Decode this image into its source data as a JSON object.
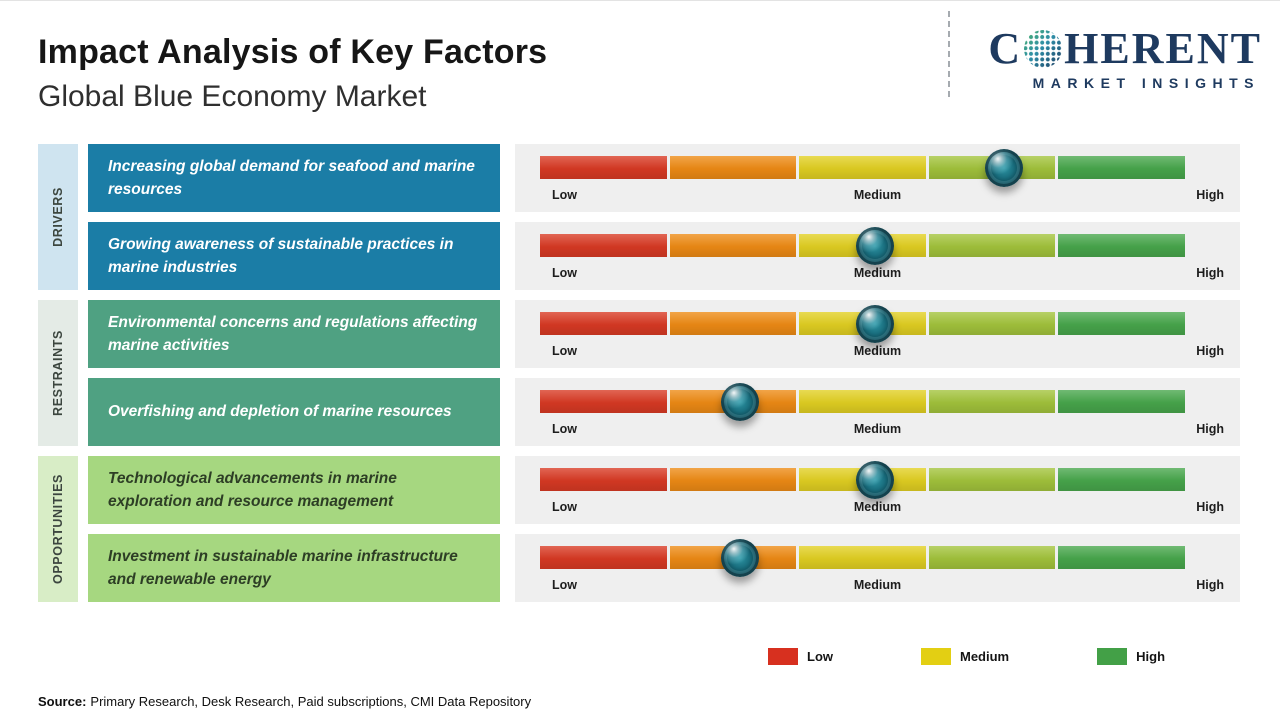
{
  "header": {
    "title": "Impact Analysis of Key Factors",
    "subtitle": "Global Blue Economy Market"
  },
  "logo": {
    "part1": "C",
    "part2": "HERENT",
    "tagline": "MARKET INSIGHTS",
    "brand_color": "#1e3a5f"
  },
  "scale": {
    "low": "Low",
    "medium": "Medium",
    "high": "High"
  },
  "groups": [
    {
      "label": "DRIVERS",
      "strip_color": "#cfe4f0",
      "box_color": "#1b7da6",
      "text_color": "#ffffff",
      "rows": [
        {
          "text": "Increasing global demand for seafood and marine resources",
          "marker_pos_pct": 72
        },
        {
          "text": "Growing awareness of sustainable practices in marine industries",
          "marker_pos_pct": 52
        }
      ]
    },
    {
      "label": "RESTRAINTS",
      "strip_color": "#e4ebe6",
      "box_color": "#4fa182",
      "text_color": "#ffffff",
      "rows": [
        {
          "text": "Environmental concerns and regulations affecting marine activities",
          "marker_pos_pct": 52
        },
        {
          "text": "Overfishing and depletion of marine resources",
          "marker_pos_pct": 31
        }
      ]
    },
    {
      "label": "OPPORTUNITIES",
      "strip_color": "#d8edc6",
      "box_color": "#a6d780",
      "text_color": "#2d3e25",
      "rows": [
        {
          "text": "Technological advancements in marine exploration and resource management",
          "marker_pos_pct": 52
        },
        {
          "text": "Investment in sustainable marine infrastructure and renewable energy",
          "marker_pos_pct": 31
        }
      ]
    }
  ],
  "bar": {
    "segment_colors": [
      "#d93a24",
      "#ee8b15",
      "#e2d022",
      "#a3c43c",
      "#48a74c"
    ],
    "panel_bg": "#efefef",
    "marker_color": "#0d4a57"
  },
  "legend": {
    "items": [
      {
        "label": "Low",
        "color": "#d7301f"
      },
      {
        "label": "Medium",
        "color": "#e3cf13"
      },
      {
        "label": "High",
        "color": "#43a047"
      }
    ]
  },
  "source": {
    "label": "Source:",
    "text": "Primary Research, Desk Research, Paid subscriptions, CMI Data Repository"
  }
}
